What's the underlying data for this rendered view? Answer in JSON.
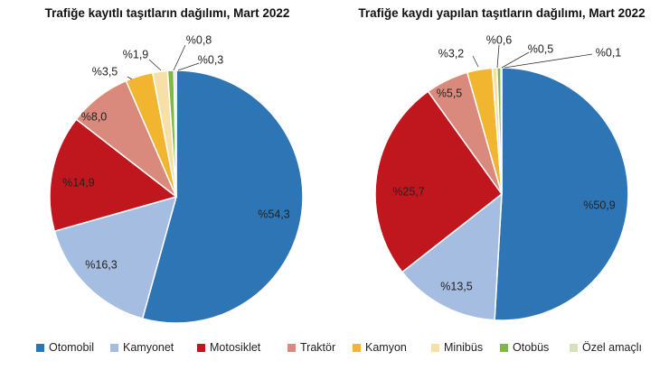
{
  "chart_data": [
    {
      "type": "pie",
      "title": "Trafiğe kayıtlı taşıtların dağılımı, Mart 2022",
      "categories": [
        "Otomobil",
        "Kamyonet",
        "Motosiklet",
        "Traktör",
        "Kamyon",
        "Minibüs",
        "Otobüs",
        "Özel amaçlı"
      ],
      "values": [
        54.3,
        16.3,
        14.9,
        8.0,
        3.5,
        1.9,
        0.8,
        0.3
      ],
      "labels": [
        "%54,3",
        "%16,3",
        "%14,9",
        "%8,0",
        "%3,5",
        "%1,9",
        "%0,8",
        "%0,3"
      ]
    },
    {
      "type": "pie",
      "title": "Trafiğe kaydı yapılan taşıtların dağılımı, Mart 2022",
      "categories": [
        "Otomobil",
        "Kamyonet",
        "Motosiklet",
        "Traktör",
        "Kamyon",
        "Minibüs",
        "Otobüs",
        "Özel amaçlı"
      ],
      "values": [
        50.9,
        13.5,
        25.7,
        5.5,
        3.2,
        0.6,
        0.5,
        0.1
      ],
      "labels": [
        "%50,9",
        "%13,5",
        "%25,7",
        "%5,5",
        "%3,2",
        "%0,6",
        "%0,5",
        "%0,1"
      ]
    }
  ],
  "legend": [
    {
      "label": "Otomobil",
      "color": "#2E75B6"
    },
    {
      "label": "Kamyonet",
      "color": "#A4BDE0"
    },
    {
      "label": "Motosiklet",
      "color": "#C0161D"
    },
    {
      "label": "Traktör",
      "color": "#D98A7C"
    },
    {
      "label": "Kamyon",
      "color": "#F2B530"
    },
    {
      "label": "Minibüs",
      "color": "#F7E0A8"
    },
    {
      "label": "Otobüs",
      "color": "#7DB944"
    },
    {
      "label": "Özel amaçlı",
      "color": "#D6E2B8"
    }
  ]
}
